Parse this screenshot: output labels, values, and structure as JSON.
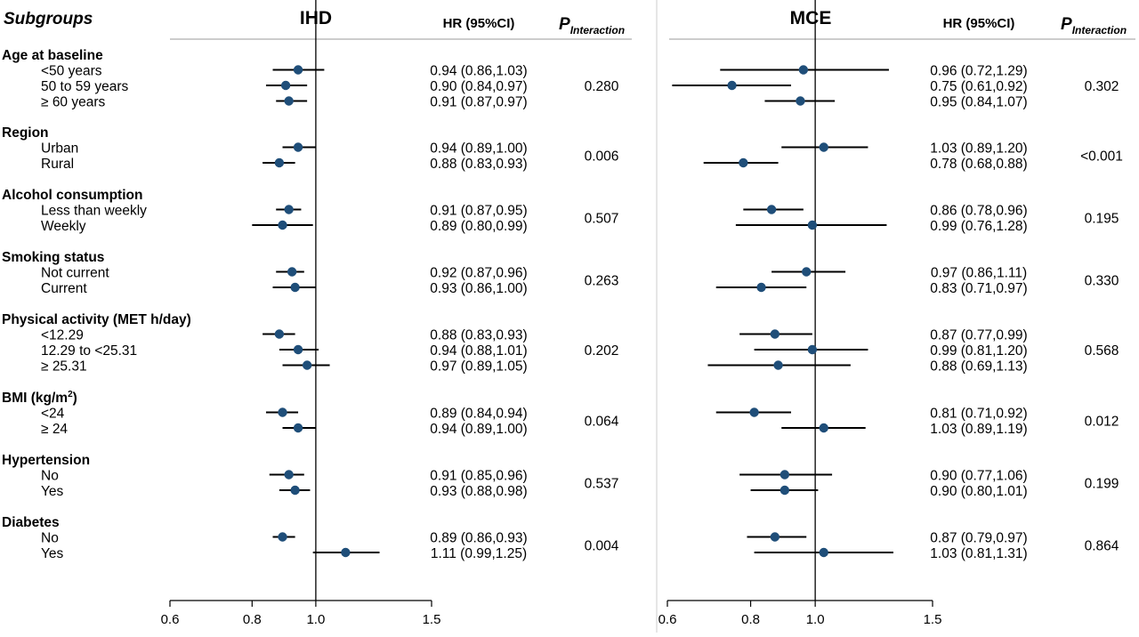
{
  "header": {
    "subgroups": "Subgroups",
    "hr_label": "HR (95%CI)",
    "p_label": "P",
    "p_sub": "Interaction"
  },
  "groups": [
    {
      "title": "Age at baseline",
      "items": [
        "<50 years",
        "50 to 59 years",
        "≥ 60 years"
      ]
    },
    {
      "title": "Region",
      "items": [
        "Urban",
        "Rural"
      ]
    },
    {
      "title": "Alcohol consumption",
      "items": [
        "Less than weekly",
        "Weekly"
      ]
    },
    {
      "title": "Smoking status",
      "items": [
        "Not current",
        "Current"
      ]
    },
    {
      "title": "Physical activity (MET h/day)",
      "items": [
        "<12.29",
        "12.29 to <25.31",
        "≥ 25.31"
      ]
    },
    {
      "title": "BMI (kg/m",
      "title_sup": "2",
      "title_end": ")",
      "items": [
        "<24",
        "≥ 24"
      ]
    },
    {
      "title": "Hypertension",
      "items": [
        "No",
        "Yes"
      ]
    },
    {
      "title": "Diabetes",
      "items": [
        "No",
        "Yes"
      ]
    }
  ],
  "colors": {
    "point": "#1f4e79",
    "line": "#000000",
    "divider": "#cccccc"
  },
  "chart_data": [
    {
      "type": "forest",
      "title": "IHD",
      "x_ticks": [
        0.6,
        0.8,
        1.0,
        1.5
      ],
      "x_tick_labels": [
        "0.6",
        "0.8",
        "1.0",
        "1.5"
      ],
      "reference_line": 1.0,
      "series": [
        {
          "hr": 0.94,
          "lo": 0.86,
          "hi": 1.03,
          "label": "0.94 (0.86,1.03)"
        },
        {
          "hr": 0.9,
          "lo": 0.84,
          "hi": 0.97,
          "label": "0.90 (0.84,0.97)"
        },
        {
          "hr": 0.91,
          "lo": 0.87,
          "hi": 0.97,
          "label": "0.91 (0.87,0.97)"
        },
        {
          "hr": 0.94,
          "lo": 0.89,
          "hi": 1.0,
          "label": "0.94 (0.89,1.00)"
        },
        {
          "hr": 0.88,
          "lo": 0.83,
          "hi": 0.93,
          "label": "0.88 (0.83,0.93)"
        },
        {
          "hr": 0.91,
          "lo": 0.87,
          "hi": 0.95,
          "label": "0.91 (0.87,0.95)"
        },
        {
          "hr": 0.89,
          "lo": 0.8,
          "hi": 0.99,
          "label": "0.89 (0.80,0.99)"
        },
        {
          "hr": 0.92,
          "lo": 0.87,
          "hi": 0.96,
          "label": "0.92 (0.87,0.96)"
        },
        {
          "hr": 0.93,
          "lo": 0.86,
          "hi": 1.0,
          "label": "0.93 (0.86,1.00)"
        },
        {
          "hr": 0.88,
          "lo": 0.83,
          "hi": 0.93,
          "label": "0.88 (0.83,0.93)"
        },
        {
          "hr": 0.94,
          "lo": 0.88,
          "hi": 1.01,
          "label": "0.94 (0.88,1.01)"
        },
        {
          "hr": 0.97,
          "lo": 0.89,
          "hi": 1.05,
          "label": "0.97 (0.89,1.05)"
        },
        {
          "hr": 0.89,
          "lo": 0.84,
          "hi": 0.94,
          "label": "0.89 (0.84,0.94)"
        },
        {
          "hr": 0.94,
          "lo": 0.89,
          "hi": 1.0,
          "label": "0.94 (0.89,1.00)"
        },
        {
          "hr": 0.91,
          "lo": 0.85,
          "hi": 0.96,
          "label": "0.91 (0.85,0.96)"
        },
        {
          "hr": 0.93,
          "lo": 0.88,
          "hi": 0.98,
          "label": "0.93 (0.88,0.98)"
        },
        {
          "hr": 0.89,
          "lo": 0.86,
          "hi": 0.93,
          "label": "0.89 (0.86,0.93)"
        },
        {
          "hr": 1.11,
          "lo": 0.99,
          "hi": 1.25,
          "label": "1.11 (0.99,1.25)"
        }
      ],
      "p_values": [
        "0.280",
        "0.006",
        "0.507",
        "0.263",
        "0.202",
        "0.064",
        "0.537",
        "0.004"
      ]
    },
    {
      "type": "forest",
      "title": "MCE",
      "x_ticks": [
        0.6,
        0.8,
        1.0,
        1.5
      ],
      "x_tick_labels": [
        "0.6",
        "0.8",
        "1.0",
        "1.5"
      ],
      "reference_line": 1.0,
      "series": [
        {
          "hr": 0.96,
          "lo": 0.72,
          "hi": 1.29,
          "label": "0.96 (0.72,1.29)"
        },
        {
          "hr": 0.75,
          "lo": 0.61,
          "hi": 0.92,
          "label": "0.75 (0.61,0.92)"
        },
        {
          "hr": 0.95,
          "lo": 0.84,
          "hi": 1.07,
          "label": "0.95 (0.84,1.07)"
        },
        {
          "hr": 1.03,
          "lo": 0.89,
          "hi": 1.2,
          "label": "1.03 (0.89,1.20)"
        },
        {
          "hr": 0.78,
          "lo": 0.68,
          "hi": 0.88,
          "label": "0.78 (0.68,0.88)"
        },
        {
          "hr": 0.86,
          "lo": 0.78,
          "hi": 0.96,
          "label": "0.86 (0.78,0.96)"
        },
        {
          "hr": 0.99,
          "lo": 0.76,
          "hi": 1.28,
          "label": "0.99 (0.76,1.28)"
        },
        {
          "hr": 0.97,
          "lo": 0.86,
          "hi": 1.11,
          "label": "0.97 (0.86,1.11)"
        },
        {
          "hr": 0.83,
          "lo": 0.71,
          "hi": 0.97,
          "label": "0.83 (0.71,0.97)"
        },
        {
          "hr": 0.87,
          "lo": 0.77,
          "hi": 0.99,
          "label": "0.87 (0.77,0.99)"
        },
        {
          "hr": 0.99,
          "lo": 0.81,
          "hi": 1.2,
          "label": "0.99 (0.81,1.20)"
        },
        {
          "hr": 0.88,
          "lo": 0.69,
          "hi": 1.13,
          "label": "0.88 (0.69,1.13)"
        },
        {
          "hr": 0.81,
          "lo": 0.71,
          "hi": 0.92,
          "label": "0.81 (0.71,0.92)"
        },
        {
          "hr": 1.03,
          "lo": 0.89,
          "hi": 1.19,
          "label": "1.03 (0.89,1.19)"
        },
        {
          "hr": 0.9,
          "lo": 0.77,
          "hi": 1.06,
          "label": "0.90 (0.77,1.06)"
        },
        {
          "hr": 0.9,
          "lo": 0.8,
          "hi": 1.01,
          "label": "0.90 (0.80,1.01)"
        },
        {
          "hr": 0.87,
          "lo": 0.79,
          "hi": 0.97,
          "label": "0.87 (0.79,0.97)"
        },
        {
          "hr": 1.03,
          "lo": 0.81,
          "hi": 1.31,
          "label": "1.03 (0.81,1.31)"
        }
      ],
      "p_values": [
        "0.302",
        "<0.001",
        "0.195",
        "0.330",
        "0.568",
        "0.012",
        "0.199",
        "0.864"
      ]
    }
  ]
}
